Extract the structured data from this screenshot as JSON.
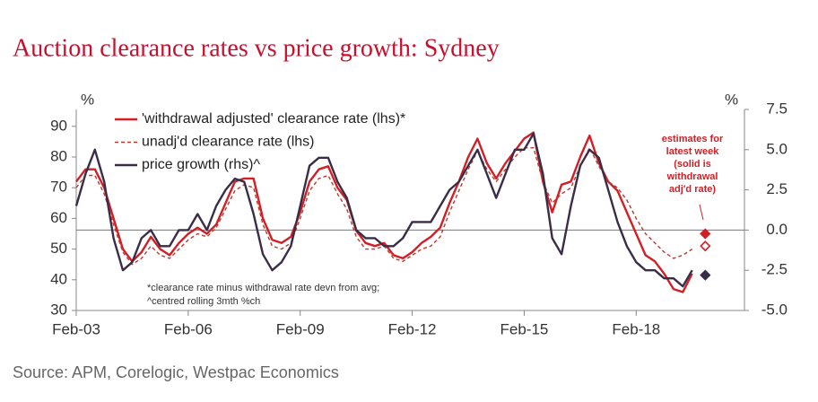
{
  "chart_data": {
    "type": "line",
    "title": "Auction clearance rates vs price growth: Sydney",
    "y_label": "%",
    "y2_label": "%",
    "source": "Source: APM, Corelogic, Westpac Economics",
    "footnotes": [
      "*clearance rate minus withdrawal rate devn from avg;",
      "^centred rolling 3mth %ch"
    ],
    "annotation": [
      "estimates for",
      "latest week",
      "(solid is",
      "withdrawal",
      "adj'd rate)"
    ],
    "xlim": [
      2003,
      2020.9
    ],
    "xticks": [
      {
        "value": 2003,
        "label": "Feb-03"
      },
      {
        "value": 2006,
        "label": "Feb-06"
      },
      {
        "value": 2009,
        "label": "Feb-09"
      },
      {
        "value": 2012,
        "label": "Feb-12"
      },
      {
        "value": 2015,
        "label": "Feb-15"
      },
      {
        "value": 2018,
        "label": "Feb-18"
      }
    ],
    "ylim": [
      30,
      95.5
    ],
    "yticks": [
      30,
      40,
      50,
      60,
      70,
      80,
      90
    ],
    "y2lim": [
      -5,
      7.5
    ],
    "y2ticks": [
      {
        "value": -5,
        "label": "-5.0"
      },
      -2.5,
      {
        "value": 0,
        "label": "0.0"
      },
      2.5,
      {
        "value": 5,
        "label": "5.0"
      },
      7.5
    ],
    "zero_line": true,
    "legend": "upper left",
    "x": [
      2003,
      2003.25,
      2003.5,
      2003.75,
      2004,
      2004.25,
      2004.5,
      2004.75,
      2005,
      2005.25,
      2005.5,
      2005.75,
      2006,
      2006.25,
      2006.5,
      2006.75,
      2007,
      2007.25,
      2007.5,
      2007.75,
      2008,
      2008.25,
      2008.5,
      2008.75,
      2009,
      2009.25,
      2009.5,
      2009.75,
      2010,
      2010.25,
      2010.5,
      2010.75,
      2011,
      2011.25,
      2011.5,
      2011.75,
      2012,
      2012.25,
      2012.5,
      2012.75,
      2013,
      2013.25,
      2013.5,
      2013.75,
      2014,
      2014.25,
      2014.5,
      2014.75,
      2015,
      2015.25,
      2015.5,
      2015.75,
      2016,
      2016.25,
      2016.5,
      2016.75,
      2017,
      2017.25,
      2017.5,
      2017.75,
      2018,
      2018.25,
      2018.5,
      2018.75,
      2019,
      2019.25,
      2019.5
    ],
    "series": [
      {
        "name": "'withdrawal adjusted' clearance rate (lhs)*",
        "color": "#d21f26",
        "dash": false,
        "axis": "y",
        "values": [
          72,
          76,
          76,
          70,
          60,
          50,
          46,
          49,
          54,
          50,
          48,
          52,
          55,
          57,
          55,
          58,
          65,
          72,
          73,
          73,
          60,
          53,
          52,
          54,
          62,
          72,
          76,
          77,
          70,
          66,
          56,
          52,
          51,
          52,
          48,
          47,
          49,
          52,
          54,
          57,
          65,
          72,
          80,
          86,
          78,
          73,
          78,
          82,
          86,
          88,
          72,
          62,
          71,
          72,
          80,
          87,
          78,
          72,
          69,
          62,
          55,
          48,
          46,
          42,
          37,
          36,
          42
        ]
      },
      {
        "name": "unadj'd clearance rate (lhs)",
        "color": "#c0392b",
        "dash": true,
        "axis": "y",
        "values": [
          70,
          74,
          74,
          68,
          58,
          49,
          45,
          47,
          51,
          48,
          47,
          50,
          53,
          55,
          54,
          57,
          63,
          69,
          71,
          70,
          58,
          51,
          50,
          52,
          60,
          69,
          73,
          74,
          68,
          63,
          54,
          50,
          50,
          51,
          47,
          46,
          48,
          50,
          51,
          54,
          62,
          69,
          76,
          82,
          76,
          72,
          76,
          80,
          83,
          83,
          72,
          65,
          68,
          70,
          77,
          83,
          77,
          72,
          70,
          66,
          60,
          55,
          52,
          49,
          47,
          48,
          50
        ]
      },
      {
        "name": "price growth (rhs)^",
        "color": "#3a2d48",
        "dash": false,
        "axis": "y2",
        "values": [
          1.5,
          3.5,
          5,
          3,
          -0.5,
          -2.5,
          -2,
          -0.5,
          0,
          -1,
          -1,
          0,
          0,
          1,
          0,
          1.5,
          2.5,
          3.2,
          3,
          1,
          -1.5,
          -2.5,
          -2,
          -1,
          1.5,
          4,
          4.5,
          4.5,
          3,
          2,
          0,
          -0.5,
          -0.5,
          -1,
          -1,
          -0.5,
          0.5,
          0.5,
          0.5,
          1.5,
          2.5,
          3,
          4,
          5,
          3.5,
          2,
          3.5,
          5,
          5,
          6,
          3.5,
          -0.5,
          -1.5,
          1.5,
          4,
          5,
          4.5,
          2.5,
          0.5,
          -1,
          -2,
          -2.5,
          -2.5,
          -3,
          -3,
          -3.5,
          -2.5
        ]
      }
    ],
    "estimates": {
      "x": 2019.85,
      "points": [
        {
          "value": 55,
          "axis": "y",
          "color": "#d21f26",
          "filled": true
        },
        {
          "value": 51,
          "axis": "y",
          "color": "#d21f26",
          "filled": false
        },
        {
          "value": -2.8,
          "axis": "y2",
          "color": "#3a2d48",
          "filled": true
        }
      ]
    }
  }
}
